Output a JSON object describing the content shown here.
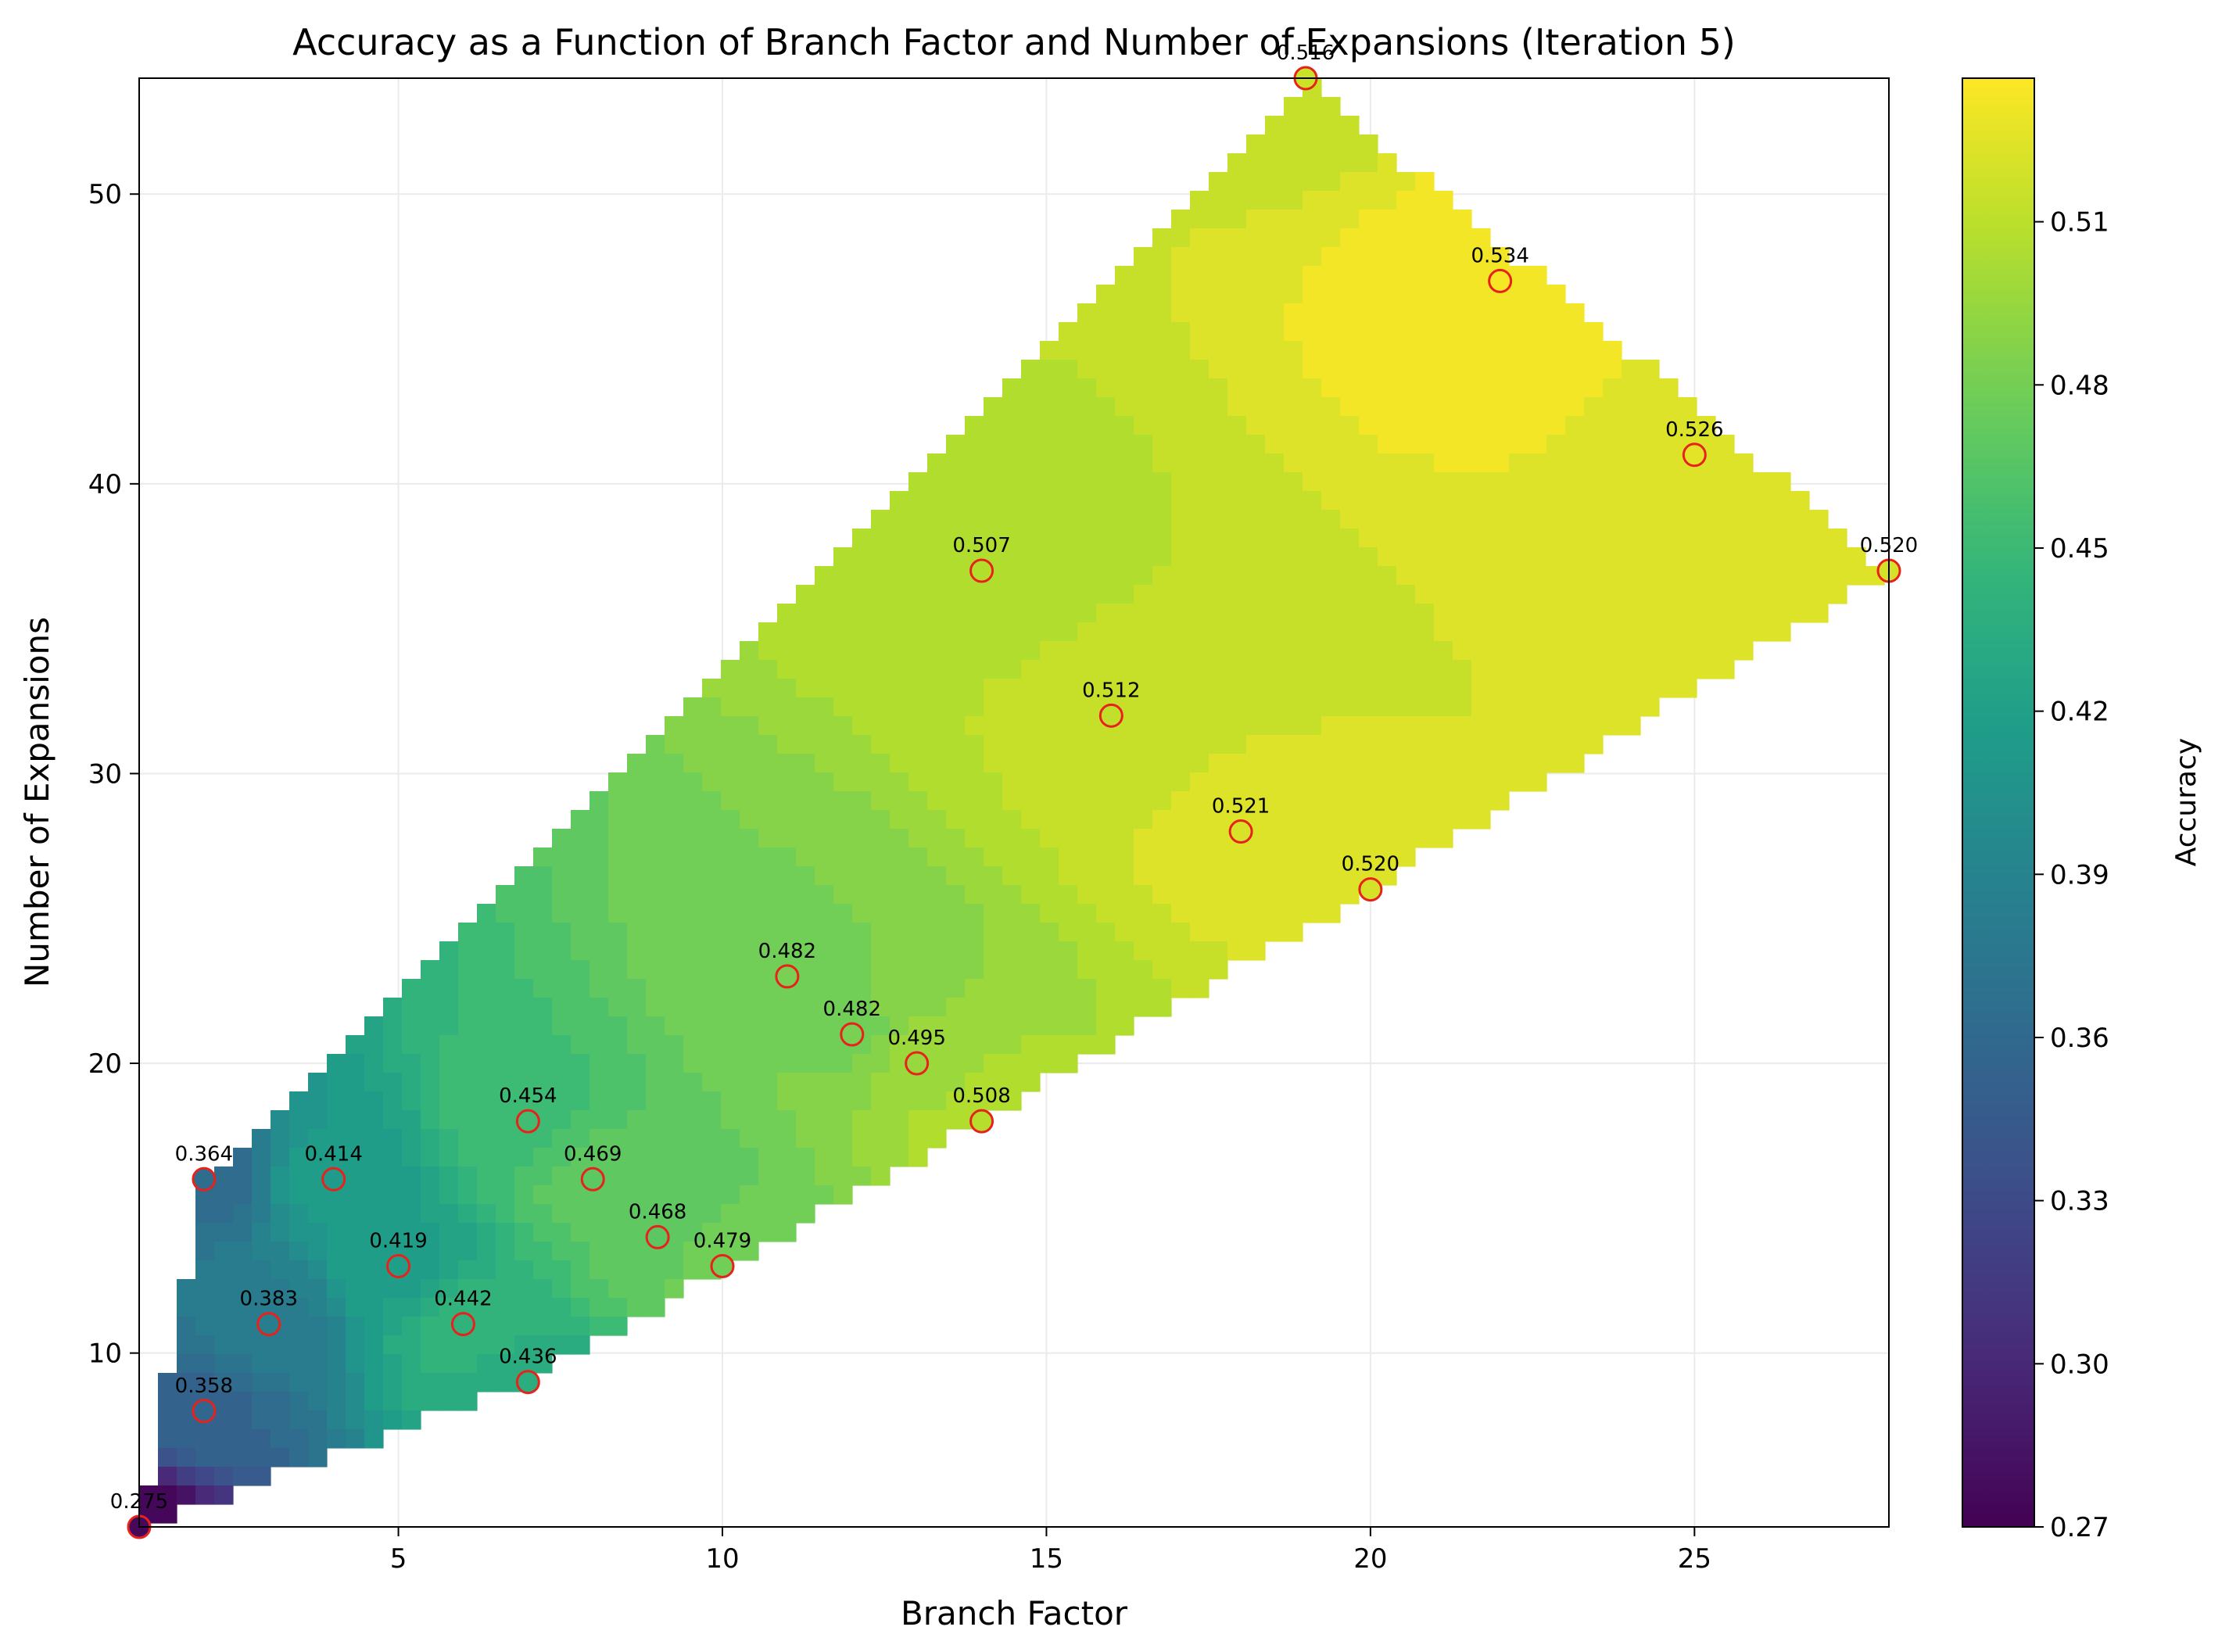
{
  "chart_data": {
    "type": "contour",
    "title": "Accuracy as a Function of Branch Factor and Number of Expansions (Iteration 5)",
    "xlabel": "Branch Factor",
    "ylabel": "Number of Expansions",
    "xlim": [
      1,
      28
    ],
    "ylim": [
      4,
      54
    ],
    "x_ticks": [
      "5",
      "10",
      "15",
      "20",
      "25"
    ],
    "y_ticks": [
      "10",
      "20",
      "30",
      "40",
      "50"
    ],
    "grid": true,
    "colormap": "viridis",
    "colorbar": {
      "label": "Accuracy",
      "min": 0.27,
      "max": 0.5364,
      "ticks": [
        "0.27",
        "0.30",
        "0.33",
        "0.36",
        "0.39",
        "0.42",
        "0.45",
        "0.48",
        "0.51"
      ]
    },
    "marker_color": "#e8211b",
    "points": [
      {
        "x": 1,
        "y": 4,
        "value": 0.275,
        "label": "0.275"
      },
      {
        "x": 2,
        "y": 8,
        "value": 0.358,
        "label": "0.358"
      },
      {
        "x": 2,
        "y": 16,
        "value": 0.364,
        "label": "0.364"
      },
      {
        "x": 3,
        "y": 11,
        "value": 0.383,
        "label": "0.383"
      },
      {
        "x": 4,
        "y": 16,
        "value": 0.414,
        "label": "0.414"
      },
      {
        "x": 5,
        "y": 13,
        "value": 0.419,
        "label": "0.419"
      },
      {
        "x": 6,
        "y": 11,
        "value": 0.442,
        "label": "0.442"
      },
      {
        "x": 7,
        "y": 9,
        "value": 0.436,
        "label": "0.436"
      },
      {
        "x": 7,
        "y": 18,
        "value": 0.454,
        "label": "0.454"
      },
      {
        "x": 8,
        "y": 16,
        "value": 0.469,
        "label": "0.469"
      },
      {
        "x": 9,
        "y": 14,
        "value": 0.468,
        "label": "0.468"
      },
      {
        "x": 10,
        "y": 13,
        "value": 0.479,
        "label": "0.479"
      },
      {
        "x": 11,
        "y": 23,
        "value": 0.482,
        "label": "0.482"
      },
      {
        "x": 12,
        "y": 21,
        "value": 0.482,
        "label": "0.482"
      },
      {
        "x": 13,
        "y": 20,
        "value": 0.495,
        "label": "0.495"
      },
      {
        "x": 14,
        "y": 18,
        "value": 0.508,
        "label": "0.508"
      },
      {
        "x": 14,
        "y": 37,
        "value": 0.507,
        "label": "0.507"
      },
      {
        "x": 16,
        "y": 32,
        "value": 0.512,
        "label": "0.512"
      },
      {
        "x": 18,
        "y": 28,
        "value": 0.521,
        "label": "0.521"
      },
      {
        "x": 19,
        "y": 54,
        "value": 0.516,
        "label": "0.516"
      },
      {
        "x": 20,
        "y": 26,
        "value": 0.52,
        "label": "0.520"
      },
      {
        "x": 22,
        "y": 47,
        "value": 0.534,
        "label": "0.534"
      },
      {
        "x": 25,
        "y": 41,
        "value": 0.526,
        "label": "0.526"
      },
      {
        "x": 28,
        "y": 37,
        "value": 0.52,
        "label": "0.520"
      }
    ]
  }
}
